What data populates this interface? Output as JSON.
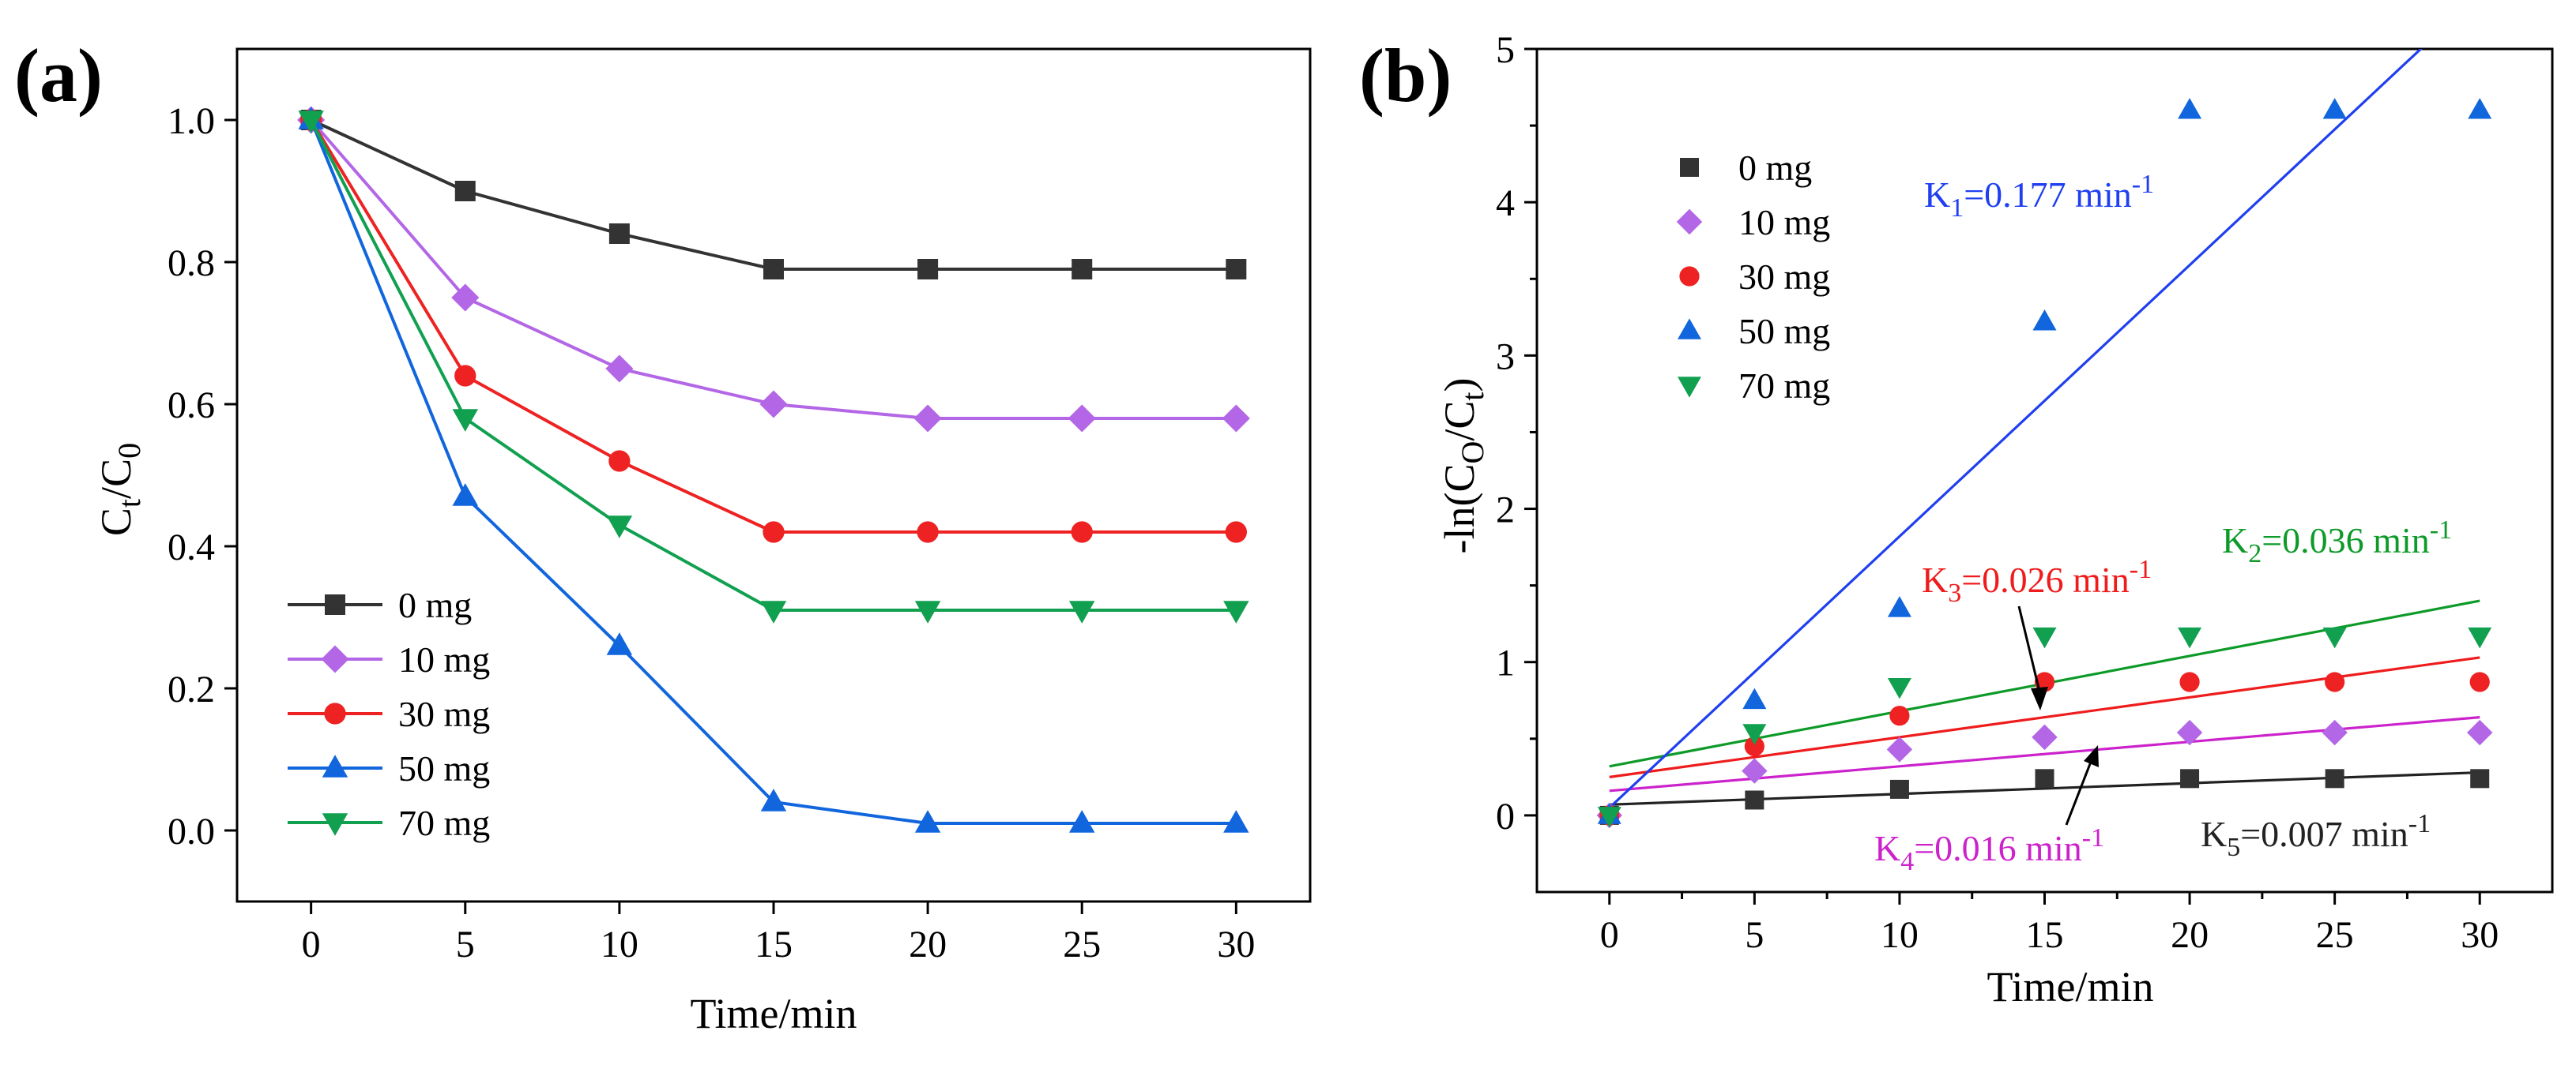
{
  "figure": {
    "panel_a_label": "(a)",
    "panel_b_label": "(b)"
  },
  "colors": {
    "0 mg": "#333333",
    "10 mg": "#b366e6",
    "30 mg": "#ee2222",
    "50 mg": "#1166dd",
    "70 mg": "#11a050",
    "k1": "#1f3ff0",
    "k2": "#0d9a28",
    "k3": "#ee1c1c",
    "k4": "#cc22cc",
    "k5": "#222222"
  },
  "chart_data": [
    {
      "id": "a",
      "type": "line",
      "title": "",
      "xlabel": "Time/min",
      "ylabel_main": "C",
      "ylabel_sub1": "t",
      "ylabel_slash": "/C",
      "ylabel_sub2": "0",
      "x": [
        0,
        5,
        10,
        15,
        20,
        25,
        30
      ],
      "xlim": [
        -2.4,
        32.4
      ],
      "ylim": [
        -0.1,
        1.1
      ],
      "xticks": [
        "0",
        "5",
        "10",
        "15",
        "20",
        "25",
        "30"
      ],
      "yticks": [
        "0.0",
        "0.2",
        "0.4",
        "0.6",
        "0.8",
        "1.0"
      ],
      "legend_position": "bottom-left",
      "series": [
        {
          "name": "0 mg",
          "marker": "square",
          "values": [
            1.0,
            0.9,
            0.84,
            0.79,
            0.79,
            0.79,
            0.79
          ]
        },
        {
          "name": "10 mg",
          "marker": "diamond",
          "values": [
            1.0,
            0.75,
            0.65,
            0.6,
            0.58,
            0.58,
            0.58
          ]
        },
        {
          "name": "30 mg",
          "marker": "circle",
          "values": [
            1.0,
            0.64,
            0.52,
            0.42,
            0.42,
            0.42,
            0.42
          ]
        },
        {
          "name": "50 mg",
          "marker": "triangle-up",
          "values": [
            1.0,
            0.47,
            0.26,
            0.04,
            0.01,
            0.01,
            0.01
          ]
        },
        {
          "name": "70 mg",
          "marker": "triangle-down",
          "values": [
            1.0,
            0.58,
            0.43,
            0.31,
            0.31,
            0.31,
            0.31
          ]
        }
      ]
    },
    {
      "id": "b",
      "type": "scatter",
      "title": "",
      "xlabel": "Time/min",
      "ylabel_main": "-ln(C",
      "ylabel_sub1": "O",
      "ylabel_slash": "/C",
      "ylabel_sub2": "t",
      "ylabel_close": ")",
      "x": [
        0,
        5,
        10,
        15,
        20,
        25,
        30
      ],
      "xlim": [
        -2.5,
        32.5
      ],
      "ylim": [
        -0.5,
        5
      ],
      "xticks": [
        "0",
        "5",
        "10",
        "15",
        "20",
        "25",
        "30"
      ],
      "yticks": [
        "0",
        "1",
        "2",
        "3",
        "4",
        "5"
      ],
      "legend_position": "top-left",
      "series": [
        {
          "name": "0 mg",
          "marker": "square",
          "values": [
            0,
            0.1,
            0.17,
            0.24,
            0.24,
            0.24,
            0.24
          ],
          "fit": {
            "slope": 0.007,
            "intercept": 0.07
          }
        },
        {
          "name": "10 mg",
          "marker": "diamond",
          "values": [
            0,
            0.29,
            0.43,
            0.51,
            0.54,
            0.54,
            0.54
          ],
          "fit": {
            "slope": 0.016,
            "intercept": 0.16
          }
        },
        {
          "name": "30 mg",
          "marker": "circle",
          "values": [
            0,
            0.45,
            0.65,
            0.87,
            0.87,
            0.87,
            0.87
          ],
          "fit": {
            "slope": 0.026,
            "intercept": 0.25
          }
        },
        {
          "name": "50 mg",
          "marker": "triangle-up",
          "values": [
            0,
            0.75,
            1.35,
            3.22,
            4.6,
            4.6,
            4.6
          ],
          "fit": {
            "slope": 0.177,
            "intercept": 0.05
          }
        },
        {
          "name": "70 mg",
          "marker": "triangle-down",
          "values": [
            0,
            0.54,
            0.84,
            1.17,
            1.17,
            1.17,
            1.17
          ],
          "fit": {
            "slope": 0.036,
            "intercept": 0.32
          }
        }
      ],
      "annotations": [
        {
          "id": "k1",
          "main": "K",
          "sub": "1",
          "val": "=0.177 min",
          "sup": "-1"
        },
        {
          "id": "k2",
          "main": "K",
          "sub": "2",
          "val": "=0.036 min",
          "sup": "-1"
        },
        {
          "id": "k3",
          "main": "K",
          "sub": "3",
          "val": "=0.026 min",
          "sup": "-1"
        },
        {
          "id": "k4",
          "main": "K",
          "sub": "4",
          "val": "=0.016 min",
          "sup": "-1"
        },
        {
          "id": "k5",
          "main": "K",
          "sub": "5",
          "val": "=0.007 min",
          "sup": "-1"
        }
      ]
    }
  ]
}
